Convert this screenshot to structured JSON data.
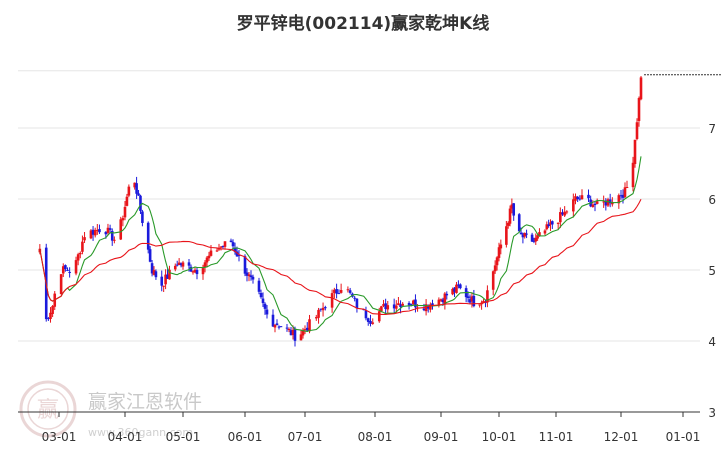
{
  "chart_data": {
    "type": "candlestick",
    "title": "罗平锌电(002114)赢家乾坤K线",
    "xlabel": "",
    "ylabel": "",
    "x_tick_labels": [
      "03-01",
      "04-01",
      "05-01",
      "06-01",
      "07-01",
      "08-01",
      "09-01",
      "10-01",
      "11-01",
      "12-01",
      "01-01"
    ],
    "y_tick_labels": [
      "3",
      "4",
      "5",
      "6",
      "7"
    ],
    "ylim": [
      3.0,
      7.8
    ],
    "grid": true,
    "colors": {
      "up": "#e8141a",
      "down": "#1a1adc",
      "short_ma": "#2a9a2a",
      "long_ma": "#e8141a",
      "grid": "#e6e6e6"
    },
    "price_anchors": [
      {
        "date": "02-20",
        "price": 5.3
      },
      {
        "date": "02-23",
        "price": 4.3
      },
      {
        "date": "02-26",
        "price": 4.5
      },
      {
        "date": "03-01",
        "price": 5.0
      },
      {
        "date": "03-08",
        "price": 5.0
      },
      {
        "date": "03-13",
        "price": 5.5
      },
      {
        "date": "03-22",
        "price": 5.6
      },
      {
        "date": "03-28",
        "price": 5.4
      },
      {
        "date": "04-05",
        "price": 6.4
      },
      {
        "date": "04-10",
        "price": 5.7
      },
      {
        "date": "04-15",
        "price": 5.0
      },
      {
        "date": "04-20",
        "price": 4.8
      },
      {
        "date": "04-28",
        "price": 5.1
      },
      {
        "date": "05-08",
        "price": 5.0
      },
      {
        "date": "05-18",
        "price": 5.3
      },
      {
        "date": "05-25",
        "price": 5.4
      },
      {
        "date": "06-01",
        "price": 5.0
      },
      {
        "date": "06-07",
        "price": 4.7
      },
      {
        "date": "06-13",
        "price": 4.3
      },
      {
        "date": "06-20",
        "price": 4.2
      },
      {
        "date": "06-27",
        "price": 4.05
      },
      {
        "date": "07-05",
        "price": 4.3
      },
      {
        "date": "07-12",
        "price": 4.6
      },
      {
        "date": "07-18",
        "price": 4.8
      },
      {
        "date": "07-24",
        "price": 4.5
      },
      {
        "date": "07-30",
        "price": 4.3
      },
      {
        "date": "08-06",
        "price": 4.5
      },
      {
        "date": "08-15",
        "price": 4.55
      },
      {
        "date": "08-25",
        "price": 4.5
      },
      {
        "date": "09-01",
        "price": 4.6
      },
      {
        "date": "09-10",
        "price": 4.75
      },
      {
        "date": "09-18",
        "price": 4.55
      },
      {
        "date": "09-24",
        "price": 4.6
      },
      {
        "date": "09-27",
        "price": 4.9
      },
      {
        "date": "10-08",
        "price": 5.9
      },
      {
        "date": "10-11",
        "price": 5.5
      },
      {
        "date": "10-20",
        "price": 5.4
      },
      {
        "date": "10-28",
        "price": 5.6
      },
      {
        "date": "11-05",
        "price": 5.8
      },
      {
        "date": "11-10",
        "price": 6.0
      },
      {
        "date": "11-15",
        "price": 6.0
      },
      {
        "date": "11-20",
        "price": 5.9
      },
      {
        "date": "11-27",
        "price": 6.0
      },
      {
        "date": "12-03",
        "price": 6.1
      },
      {
        "date": "12-06",
        "price": 6.3
      },
      {
        "date": "12-10",
        "price": 7.4
      },
      {
        "date": "12-11",
        "price": 7.75
      }
    ],
    "latest_close": 7.75
  },
  "watermark": {
    "text": "赢家江恩软件",
    "url": "www.360gann.com",
    "seal_glyph": "赢"
  }
}
